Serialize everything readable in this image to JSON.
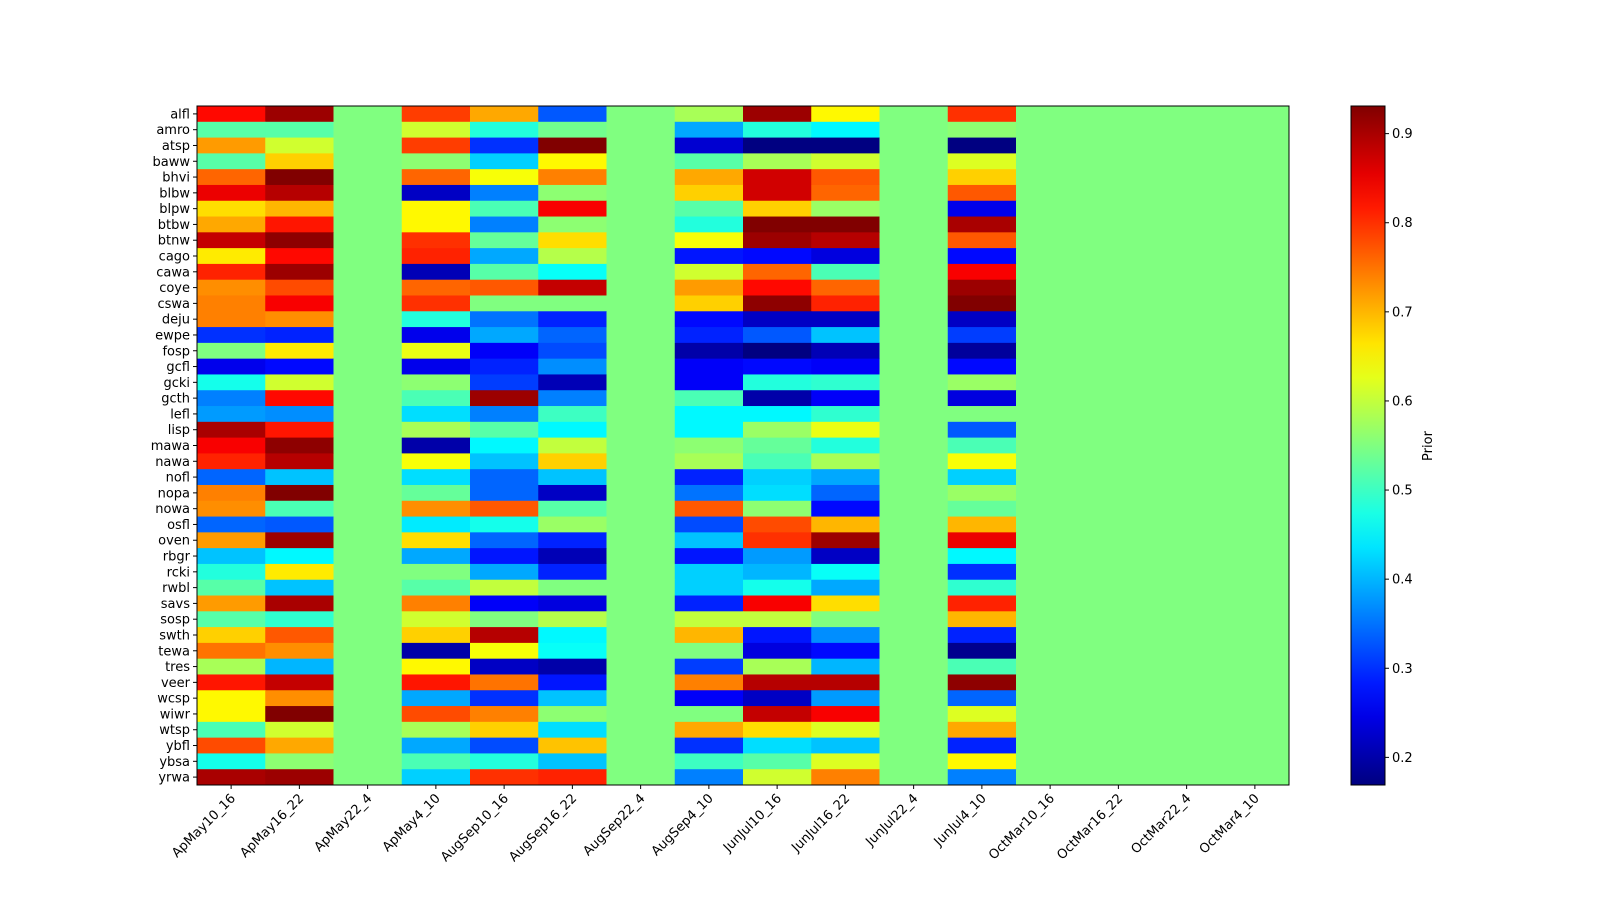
{
  "chart_data": {
    "type": "heatmap",
    "title": "",
    "xlabel": "",
    "ylabel": "",
    "colormap": "jet",
    "colorbar": {
      "label": "Prior",
      "range": [
        0.169,
        0.931
      ],
      "ticks": [
        0.2,
        0.3,
        0.4,
        0.5,
        0.6,
        0.7,
        0.8,
        0.9
      ],
      "tick_labels": [
        "0.2",
        "0.3",
        "0.4",
        "0.5",
        "0.6",
        "0.7",
        "0.8",
        "0.9"
      ]
    },
    "columns": [
      "ApMay10_16",
      "ApMay16_22",
      "ApMay22_4",
      "ApMay4_10",
      "AugSep10_16",
      "AugSep16_22",
      "AugSep22_4",
      "AugSep4_10",
      "JunJul10_16",
      "JunJul16_22",
      "JunJul22_4",
      "JunJul4_10",
      "OctMar10_16",
      "OctMar16_22",
      "OctMar22_4",
      "OctMar4_10"
    ],
    "rows": [
      "alfl",
      "amro",
      "atsp",
      "baww",
      "bhvi",
      "blbw",
      "blpw",
      "btbw",
      "btnw",
      "cago",
      "cawa",
      "coye",
      "cswa",
      "deju",
      "ewpe",
      "fosp",
      "gcfl",
      "gcki",
      "gcth",
      "lefl",
      "lisp",
      "mawa",
      "nawa",
      "nofl",
      "nopa",
      "nowa",
      "osfl",
      "oven",
      "rbgr",
      "rcki",
      "rwbl",
      "savs",
      "sosp",
      "swth",
      "tewa",
      "tres",
      "veer",
      "wcsp",
      "wiwr",
      "wtsp",
      "ybfl",
      "ybsa",
      "yrwa"
    ],
    "values": [
      [
        0.83,
        0.91,
        0.55,
        0.79,
        0.71,
        0.33,
        0.55,
        0.58,
        0.91,
        0.65,
        0.55,
        0.8,
        0.55,
        0.55,
        0.55,
        0.55
      ],
      [
        0.52,
        0.52,
        0.55,
        0.61,
        0.48,
        0.54,
        0.55,
        0.39,
        0.48,
        0.45,
        0.55,
        0.56,
        0.55,
        0.55,
        0.55,
        0.55
      ],
      [
        0.72,
        0.61,
        0.55,
        0.79,
        0.3,
        0.93,
        0.55,
        0.23,
        0.17,
        0.17,
        0.55,
        0.17,
        0.55,
        0.55,
        0.55,
        0.55
      ],
      [
        0.52,
        0.68,
        0.55,
        0.56,
        0.42,
        0.65,
        0.55,
        0.52,
        0.58,
        0.61,
        0.55,
        0.62,
        0.55,
        0.55,
        0.55,
        0.55
      ],
      [
        0.76,
        0.93,
        0.55,
        0.76,
        0.64,
        0.74,
        0.55,
        0.71,
        0.87,
        0.77,
        0.55,
        0.68,
        0.55,
        0.55,
        0.55,
        0.55
      ],
      [
        0.85,
        0.89,
        0.55,
        0.22,
        0.36,
        0.56,
        0.55,
        0.68,
        0.87,
        0.76,
        0.55,
        0.77,
        0.55,
        0.55,
        0.55,
        0.55
      ],
      [
        0.67,
        0.7,
        0.55,
        0.65,
        0.51,
        0.84,
        0.55,
        0.52,
        0.68,
        0.57,
        0.55,
        0.25,
        0.55,
        0.55,
        0.55,
        0.55
      ],
      [
        0.71,
        0.82,
        0.55,
        0.65,
        0.36,
        0.56,
        0.55,
        0.48,
        0.93,
        0.93,
        0.55,
        0.9,
        0.55,
        0.55,
        0.55,
        0.55
      ],
      [
        0.88,
        0.92,
        0.55,
        0.8,
        0.53,
        0.67,
        0.55,
        0.64,
        0.91,
        0.89,
        0.55,
        0.77,
        0.55,
        0.55,
        0.55,
        0.55
      ],
      [
        0.66,
        0.83,
        0.55,
        0.81,
        0.39,
        0.59,
        0.55,
        0.28,
        0.27,
        0.24,
        0.55,
        0.27,
        0.55,
        0.55,
        0.55,
        0.55
      ],
      [
        0.81,
        0.91,
        0.55,
        0.21,
        0.52,
        0.46,
        0.55,
        0.61,
        0.76,
        0.51,
        0.55,
        0.84,
        0.55,
        0.55,
        0.55,
        0.55
      ],
      [
        0.73,
        0.78,
        0.55,
        0.76,
        0.77,
        0.88,
        0.55,
        0.72,
        0.83,
        0.76,
        0.55,
        0.91,
        0.55,
        0.55,
        0.55,
        0.55
      ],
      [
        0.74,
        0.84,
        0.55,
        0.8,
        0.55,
        0.55,
        0.55,
        0.68,
        0.92,
        0.81,
        0.55,
        0.93,
        0.55,
        0.55,
        0.55,
        0.55
      ],
      [
        0.74,
        0.73,
        0.55,
        0.48,
        0.35,
        0.29,
        0.55,
        0.27,
        0.22,
        0.22,
        0.55,
        0.22,
        0.55,
        0.55,
        0.55,
        0.55
      ],
      [
        0.3,
        0.29,
        0.55,
        0.25,
        0.39,
        0.34,
        0.55,
        0.29,
        0.33,
        0.41,
        0.55,
        0.31,
        0.55,
        0.55,
        0.55,
        0.55
      ],
      [
        0.55,
        0.66,
        0.55,
        0.63,
        0.26,
        0.32,
        0.55,
        0.2,
        0.17,
        0.21,
        0.55,
        0.19,
        0.55,
        0.55,
        0.55,
        0.55
      ],
      [
        0.25,
        0.27,
        0.55,
        0.25,
        0.29,
        0.37,
        0.55,
        0.26,
        0.27,
        0.26,
        0.55,
        0.27,
        0.55,
        0.55,
        0.55,
        0.55
      ],
      [
        0.47,
        0.61,
        0.55,
        0.56,
        0.31,
        0.21,
        0.55,
        0.26,
        0.48,
        0.49,
        0.55,
        0.57,
        0.55,
        0.55,
        0.55,
        0.55
      ],
      [
        0.36,
        0.83,
        0.55,
        0.51,
        0.91,
        0.36,
        0.55,
        0.51,
        0.2,
        0.26,
        0.55,
        0.24,
        0.55,
        0.55,
        0.55,
        0.55
      ],
      [
        0.38,
        0.37,
        0.55,
        0.43,
        0.36,
        0.5,
        0.55,
        0.45,
        0.45,
        0.49,
        0.55,
        0.55,
        0.55,
        0.55,
        0.55,
        0.55
      ],
      [
        0.9,
        0.82,
        0.55,
        0.58,
        0.52,
        0.45,
        0.55,
        0.45,
        0.57,
        0.63,
        0.55,
        0.33,
        0.55,
        0.55,
        0.55,
        0.55
      ],
      [
        0.84,
        0.92,
        0.55,
        0.2,
        0.45,
        0.6,
        0.55,
        0.56,
        0.53,
        0.48,
        0.55,
        0.51,
        0.55,
        0.55,
        0.55,
        0.55
      ],
      [
        0.81,
        0.89,
        0.55,
        0.64,
        0.41,
        0.68,
        0.55,
        0.58,
        0.51,
        0.58,
        0.55,
        0.64,
        0.55,
        0.55,
        0.55,
        0.55
      ],
      [
        0.34,
        0.41,
        0.55,
        0.43,
        0.34,
        0.41,
        0.55,
        0.29,
        0.42,
        0.39,
        0.55,
        0.42,
        0.55,
        0.55,
        0.55,
        0.55
      ],
      [
        0.74,
        0.93,
        0.55,
        0.53,
        0.34,
        0.22,
        0.55,
        0.35,
        0.43,
        0.34,
        0.55,
        0.57,
        0.55,
        0.55,
        0.55,
        0.55
      ],
      [
        0.73,
        0.51,
        0.55,
        0.73,
        0.77,
        0.52,
        0.55,
        0.77,
        0.56,
        0.27,
        0.55,
        0.53,
        0.55,
        0.55,
        0.55,
        0.55
      ],
      [
        0.34,
        0.33,
        0.55,
        0.44,
        0.47,
        0.57,
        0.55,
        0.32,
        0.78,
        0.7,
        0.55,
        0.7,
        0.55,
        0.55,
        0.55,
        0.55
      ],
      [
        0.72,
        0.91,
        0.55,
        0.67,
        0.34,
        0.29,
        0.55,
        0.41,
        0.8,
        0.91,
        0.55,
        0.85,
        0.55,
        0.55,
        0.55,
        0.55
      ],
      [
        0.41,
        0.45,
        0.55,
        0.39,
        0.28,
        0.21,
        0.55,
        0.28,
        0.38,
        0.22,
        0.55,
        0.45,
        0.55,
        0.55,
        0.55,
        0.55
      ],
      [
        0.48,
        0.66,
        0.55,
        0.55,
        0.39,
        0.29,
        0.55,
        0.42,
        0.4,
        0.46,
        0.55,
        0.3,
        0.55,
        0.55,
        0.55,
        0.55
      ],
      [
        0.52,
        0.41,
        0.55,
        0.52,
        0.6,
        0.55,
        0.55,
        0.42,
        0.47,
        0.39,
        0.55,
        0.49,
        0.55,
        0.55,
        0.55,
        0.55
      ],
      [
        0.72,
        0.9,
        0.55,
        0.74,
        0.26,
        0.24,
        0.55,
        0.29,
        0.84,
        0.67,
        0.55,
        0.81,
        0.55,
        0.55,
        0.55,
        0.55
      ],
      [
        0.52,
        0.49,
        0.55,
        0.61,
        0.55,
        0.59,
        0.55,
        0.6,
        0.6,
        0.55,
        0.55,
        0.7,
        0.55,
        0.55,
        0.55,
        0.55
      ],
      [
        0.68,
        0.77,
        0.55,
        0.68,
        0.89,
        0.45,
        0.55,
        0.7,
        0.28,
        0.37,
        0.55,
        0.29,
        0.55,
        0.55,
        0.55,
        0.55
      ],
      [
        0.75,
        0.73,
        0.55,
        0.2,
        0.64,
        0.46,
        0.55,
        0.55,
        0.24,
        0.27,
        0.55,
        0.18,
        0.55,
        0.55,
        0.55,
        0.55
      ],
      [
        0.58,
        0.4,
        0.55,
        0.65,
        0.22,
        0.2,
        0.55,
        0.31,
        0.58,
        0.4,
        0.55,
        0.51,
        0.55,
        0.55,
        0.55,
        0.55
      ],
      [
        0.82,
        0.88,
        0.55,
        0.82,
        0.75,
        0.28,
        0.55,
        0.74,
        0.89,
        0.89,
        0.55,
        0.92,
        0.55,
        0.55,
        0.55,
        0.55
      ],
      [
        0.65,
        0.73,
        0.55,
        0.39,
        0.3,
        0.41,
        0.55,
        0.26,
        0.22,
        0.38,
        0.55,
        0.34,
        0.55,
        0.55,
        0.55,
        0.55
      ],
      [
        0.65,
        0.93,
        0.55,
        0.78,
        0.74,
        0.56,
        0.55,
        0.55,
        0.88,
        0.84,
        0.55,
        0.62,
        0.55,
        0.55,
        0.55,
        0.55
      ],
      [
        0.51,
        0.61,
        0.55,
        0.58,
        0.68,
        0.43,
        0.55,
        0.71,
        0.67,
        0.62,
        0.55,
        0.71,
        0.55,
        0.55,
        0.55,
        0.55
      ],
      [
        0.78,
        0.71,
        0.55,
        0.39,
        0.32,
        0.69,
        0.55,
        0.3,
        0.43,
        0.41,
        0.55,
        0.29,
        0.55,
        0.55,
        0.55,
        0.55
      ],
      [
        0.47,
        0.56,
        0.55,
        0.51,
        0.48,
        0.41,
        0.55,
        0.5,
        0.52,
        0.62,
        0.55,
        0.65,
        0.55,
        0.55,
        0.55,
        0.55
      ],
      [
        0.9,
        0.91,
        0.55,
        0.42,
        0.8,
        0.81,
        0.55,
        0.36,
        0.61,
        0.74,
        0.55,
        0.36,
        0.55,
        0.55,
        0.55,
        0.55
      ]
    ]
  }
}
